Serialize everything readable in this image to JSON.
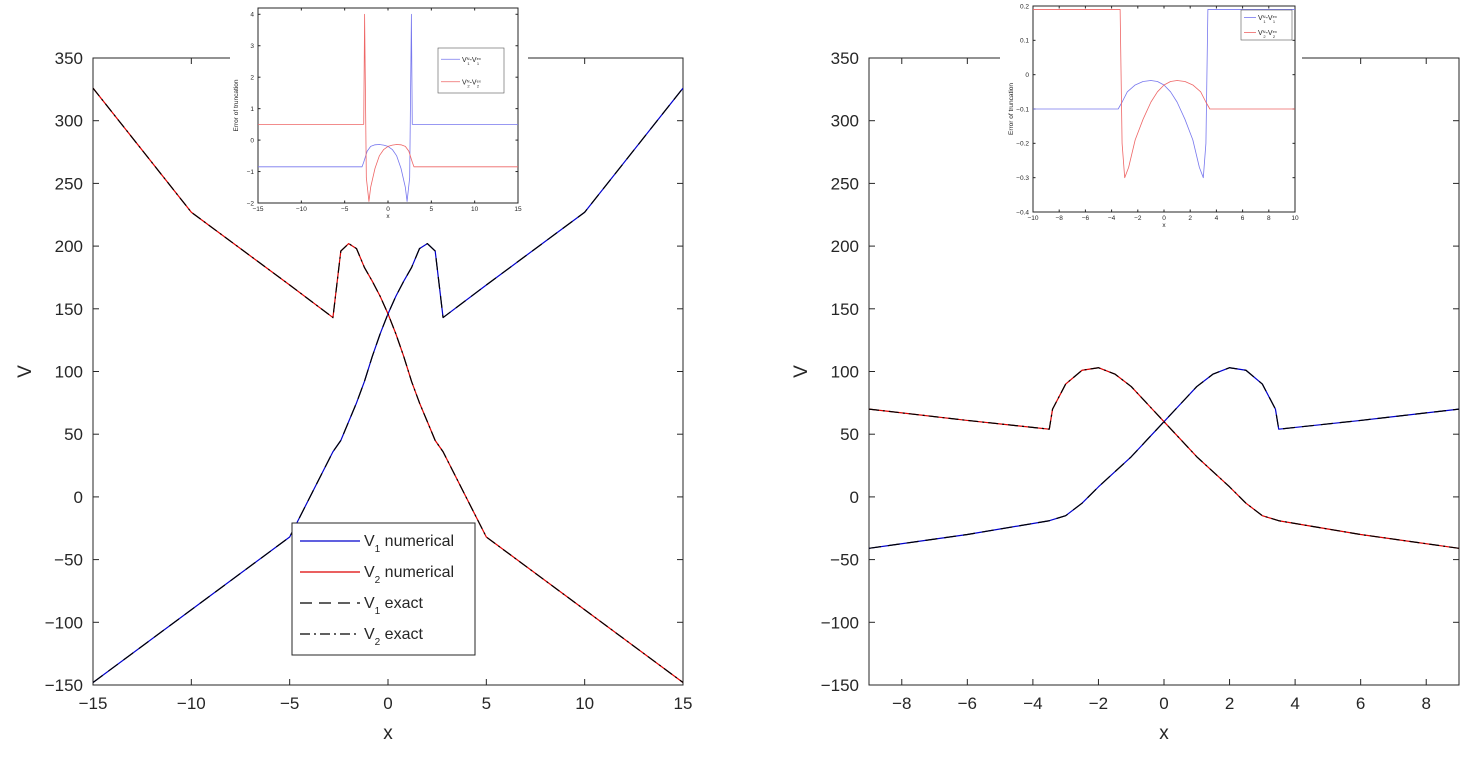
{
  "chart_data": [
    {
      "id": "left-main",
      "type": "line",
      "xlabel": "x",
      "ylabel": "V",
      "xlim": [
        -15,
        15
      ],
      "ylim": [
        -150,
        350
      ],
      "xticks": [
        -15,
        -10,
        -5,
        0,
        5,
        10,
        15
      ],
      "yticks": [
        -150,
        -100,
        -50,
        0,
        50,
        100,
        150,
        200,
        250,
        300,
        350
      ],
      "grid": false,
      "legend_position": "bottom-center",
      "series": [
        {
          "name": "V1 numerical",
          "color": "#0000cc",
          "style": "solid",
          "x": [
            -15,
            -10,
            -5,
            -2.8,
            -2.4,
            -2.0,
            -1.6,
            -1.2,
            -0.8,
            -0.4,
            0,
            0.4,
            0.8,
            1.2,
            1.6,
            2.0,
            2.4,
            2.8,
            5,
            10,
            15
          ],
          "y": [
            -148,
            -90,
            -32,
            36,
            45,
            60,
            75,
            92,
            112,
            130,
            146,
            160,
            172,
            183,
            198,
            202,
            196,
            143,
            169,
            227,
            326
          ]
        },
        {
          "name": "V2 numerical",
          "color": "#dd0000",
          "style": "solid",
          "x": [
            -15,
            -10,
            -5,
            -2.8,
            -2.4,
            -2.0,
            -1.6,
            -1.2,
            -0.8,
            -0.4,
            0,
            0.4,
            0.8,
            1.2,
            1.6,
            2.0,
            2.4,
            2.8,
            5,
            10,
            15
          ],
          "y": [
            326,
            227,
            169,
            143,
            196,
            202,
            198,
            183,
            172,
            160,
            146,
            130,
            112,
            92,
            75,
            60,
            45,
            36,
            -32,
            -90,
            -148
          ]
        },
        {
          "name": "V1 exact",
          "color": "#000000",
          "style": "dashed",
          "x": [
            -15,
            -10,
            -5,
            -2.8,
            -2.4,
            -2.0,
            -1.6,
            -1.2,
            -0.8,
            -0.4,
            0,
            0.4,
            0.8,
            1.2,
            1.6,
            2.0,
            2.4,
            2.8,
            5,
            10,
            15
          ],
          "y": [
            -148,
            -90,
            -32,
            36,
            45,
            60,
            75,
            92,
            112,
            130,
            146,
            160,
            172,
            183,
            198,
            202,
            196,
            143,
            169,
            227,
            326
          ]
        },
        {
          "name": "V2 exact",
          "color": "#000000",
          "style": "dashdot",
          "x": [
            -15,
            -10,
            -5,
            -2.8,
            -2.4,
            -2.0,
            -1.6,
            -1.2,
            -0.8,
            -0.4,
            0,
            0.4,
            0.8,
            1.2,
            1.6,
            2.0,
            2.4,
            2.8,
            5,
            10,
            15
          ],
          "y": [
            326,
            227,
            169,
            143,
            196,
            202,
            198,
            183,
            172,
            160,
            146,
            130,
            112,
            92,
            75,
            60,
            45,
            36,
            -32,
            -90,
            -148
          ]
        }
      ]
    },
    {
      "id": "left-inset",
      "type": "line",
      "xlabel": "x",
      "ylabel": "Error of truncation",
      "xlim": [
        -15,
        15
      ],
      "ylim": [
        -2,
        4.2
      ],
      "xticks": [
        -15,
        -10,
        -5,
        0,
        5,
        10,
        15
      ],
      "yticks": [
        -2,
        -1,
        0,
        1,
        2,
        3,
        4
      ],
      "legend_position": "top-right",
      "series": [
        {
          "name": "V1N-V1ex",
          "color": "#7777ee",
          "style": "solid",
          "x": [
            -15,
            -3.0,
            -2.8,
            -2.4,
            -2.0,
            -1.5,
            -1.0,
            -0.5,
            0,
            0.5,
            1.0,
            1.5,
            2.0,
            2.2,
            2.5,
            2.7,
            2.8,
            2.9,
            15
          ],
          "y": [
            -0.85,
            -0.85,
            -0.7,
            -0.35,
            -0.2,
            -0.15,
            -0.14,
            -0.16,
            -0.2,
            -0.3,
            -0.5,
            -0.9,
            -1.5,
            -1.95,
            -1.2,
            4,
            0.5,
            0.5,
            0.5
          ]
        },
        {
          "name": "V2N-V2ex",
          "color": "#ee6666",
          "style": "solid",
          "x": [
            -15,
            -2.9,
            -2.8,
            -2.7,
            -2.5,
            -2.2,
            -2.0,
            -1.5,
            -1.0,
            -0.5,
            0,
            0.5,
            1.0,
            1.5,
            2.0,
            2.4,
            2.8,
            3.0,
            15
          ],
          "y": [
            0.5,
            0.5,
            0.5,
            4,
            -1.2,
            -1.95,
            -1.5,
            -0.9,
            -0.5,
            -0.3,
            -0.2,
            -0.16,
            -0.14,
            -0.15,
            -0.2,
            -0.35,
            -0.7,
            -0.85,
            -0.85
          ]
        }
      ]
    },
    {
      "id": "right-main",
      "type": "line",
      "xlabel": "x",
      "ylabel": "V",
      "xlim": [
        -9,
        9
      ],
      "ylim": [
        -150,
        350
      ],
      "xticks": [
        -8,
        -6,
        -4,
        -2,
        0,
        2,
        4,
        6,
        8
      ],
      "yticks": [
        -150,
        -100,
        -50,
        0,
        50,
        100,
        150,
        200,
        250,
        300,
        350
      ],
      "grid": false,
      "series": [
        {
          "name": "V1 numerical",
          "color": "#0000cc",
          "style": "solid",
          "x": [
            -9,
            -6,
            -3.5,
            -3.0,
            -2.5,
            -2.0,
            -1.5,
            -1.0,
            -0.5,
            0,
            0.5,
            1.0,
            1.5,
            2.0,
            2.5,
            3.0,
            3.4,
            3.5,
            6,
            9
          ],
          "y": [
            -41,
            -30,
            -19,
            -15,
            -5,
            8,
            20,
            32,
            46,
            60,
            74,
            88,
            98,
            103,
            101,
            90,
            70,
            54,
            61,
            70
          ]
        },
        {
          "name": "V2 numerical",
          "color": "#dd0000",
          "style": "solid",
          "x": [
            -9,
            -6,
            -3.5,
            -3.4,
            -3.0,
            -2.5,
            -2.0,
            -1.5,
            -1.0,
            -0.5,
            0,
            0.5,
            1.0,
            1.5,
            2.0,
            2.5,
            3.0,
            3.5,
            6,
            9
          ],
          "y": [
            70,
            61,
            54,
            70,
            90,
            101,
            103,
            98,
            88,
            74,
            60,
            46,
            32,
            20,
            8,
            -5,
            -15,
            -19,
            -30,
            -41
          ]
        },
        {
          "name": "V1 exact",
          "color": "#000000",
          "style": "dashed",
          "x": [
            -9,
            -6,
            -3.5,
            -3.0,
            -2.5,
            -2.0,
            -1.5,
            -1.0,
            -0.5,
            0,
            0.5,
            1.0,
            1.5,
            2.0,
            2.5,
            3.0,
            3.4,
            3.5,
            6,
            9
          ],
          "y": [
            -41,
            -30,
            -19,
            -15,
            -5,
            8,
            20,
            32,
            46,
            60,
            74,
            88,
            98,
            103,
            101,
            90,
            70,
            54,
            61,
            70
          ]
        },
        {
          "name": "V2 exact",
          "color": "#000000",
          "style": "dashdot",
          "x": [
            -9,
            -6,
            -3.5,
            -3.4,
            -3.0,
            -2.5,
            -2.0,
            -1.5,
            -1.0,
            -0.5,
            0,
            0.5,
            1.0,
            1.5,
            2.0,
            2.5,
            3.0,
            3.5,
            6,
            9
          ],
          "y": [
            70,
            61,
            54,
            70,
            90,
            101,
            103,
            98,
            88,
            74,
            60,
            46,
            32,
            20,
            8,
            -5,
            -15,
            -19,
            -30,
            -41
          ]
        }
      ]
    },
    {
      "id": "right-inset",
      "type": "line",
      "xlabel": "x",
      "ylabel": "Error of truncation",
      "xlim": [
        -10,
        10
      ],
      "ylim": [
        -0.4,
        0.2
      ],
      "xticks": [
        -10,
        -8,
        -6,
        -4,
        -2,
        0,
        2,
        4,
        6,
        8,
        10
      ],
      "yticks": [
        -0.4,
        -0.3,
        -0.2,
        -0.1,
        0,
        0.1,
        0.2
      ],
      "legend_position": "top-right",
      "series": [
        {
          "name": "V1N-V1ex",
          "color": "#7777ee",
          "style": "solid",
          "x": [
            -10,
            -3.5,
            -3.2,
            -2.8,
            -2.2,
            -1.6,
            -1.0,
            -0.5,
            0,
            0.5,
            1.0,
            1.6,
            2.2,
            2.7,
            3.0,
            3.2,
            3.35,
            3.4,
            10
          ],
          "y": [
            -0.1,
            -0.1,
            -0.08,
            -0.05,
            -0.03,
            -0.02,
            -0.017,
            -0.02,
            -0.03,
            -0.05,
            -0.08,
            -0.13,
            -0.19,
            -0.27,
            -0.3,
            -0.2,
            0.19,
            0.19,
            0.19
          ]
        },
        {
          "name": "V2N-V2ex",
          "color": "#ee6666",
          "style": "solid",
          "x": [
            -10,
            -3.4,
            -3.35,
            -3.2,
            -3.0,
            -2.7,
            -2.2,
            -1.6,
            -1.0,
            -0.5,
            0,
            0.5,
            1.0,
            1.6,
            2.2,
            2.8,
            3.2,
            3.5,
            10
          ],
          "y": [
            0.19,
            0.19,
            0.19,
            -0.2,
            -0.3,
            -0.27,
            -0.19,
            -0.13,
            -0.08,
            -0.05,
            -0.03,
            -0.02,
            -0.017,
            -0.02,
            -0.03,
            -0.05,
            -0.08,
            -0.1,
            -0.1
          ]
        }
      ]
    }
  ],
  "legend": {
    "items": [
      {
        "main": "V",
        "sub": "1",
        "rest": " numerical"
      },
      {
        "main": "V",
        "sub": "2",
        "rest": " numerical"
      },
      {
        "main": "V",
        "sub": "1",
        "rest": " exact"
      },
      {
        "main": "V",
        "sub": "2",
        "rest": " exact"
      }
    ]
  },
  "inset_legend": {
    "items": [
      {
        "main": "V",
        "sub": "1",
        "sup": "N",
        "mid": "-V",
        "sub2": "1",
        "sup2": "ex"
      },
      {
        "main": "V",
        "sub": "2",
        "sup": "N",
        "mid": "-V",
        "sub2": "2",
        "sup2": "ex"
      }
    ]
  }
}
